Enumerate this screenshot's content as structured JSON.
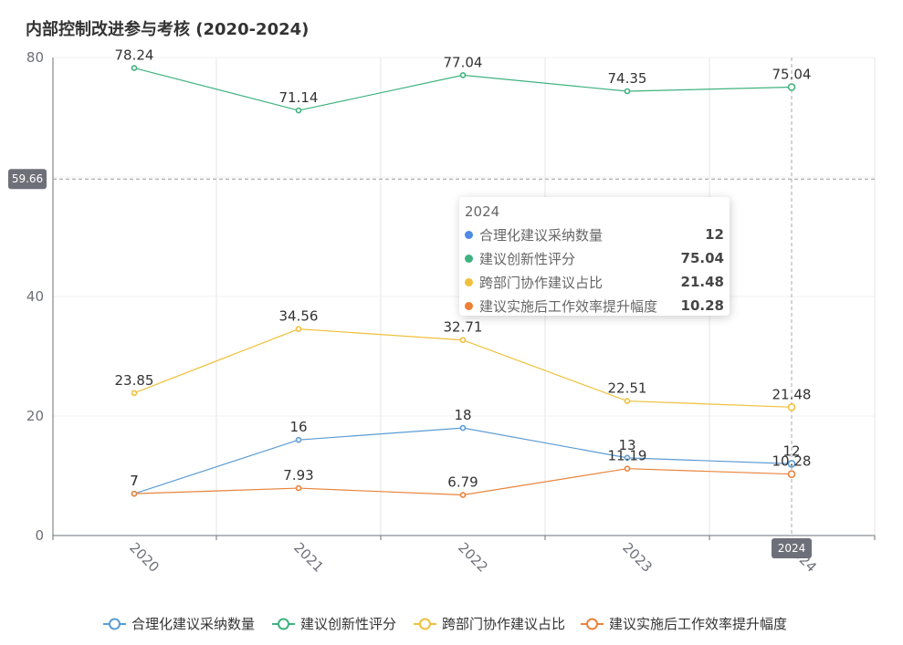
{
  "chart_data": {
    "type": "line",
    "title": "内部控制改进参与考核 (2020-2024)",
    "categories": [
      "2020",
      "2021",
      "2022",
      "2023",
      "2024"
    ],
    "ylim": [
      0,
      80
    ],
    "yticks": [
      0,
      20,
      40,
      60,
      80
    ],
    "grid": true,
    "legend_position": "bottom",
    "series": [
      {
        "name": "合理化建议采纳数量",
        "color": "#5b9bd5",
        "values": [
          7,
          16,
          18,
          13,
          12
        ]
      },
      {
        "name": "建议创新性评分",
        "color": "#3fb27f",
        "values": [
          78.24,
          71.14,
          77.04,
          74.35,
          75.04
        ]
      },
      {
        "name": "跨部门协作建议占比",
        "color": "#f0c03c",
        "values": [
          23.85,
          34.56,
          32.71,
          22.51,
          21.48
        ]
      },
      {
        "name": "建议实施后工作效率提升幅度",
        "color": "#e8843c",
        "values": [
          7,
          7.93,
          6.79,
          11.19,
          10.28
        ]
      }
    ],
    "axis_pointer": {
      "y_value": "59.66",
      "x_label": "2024"
    }
  },
  "tooltip": {
    "title": "2024",
    "rows": [
      {
        "name": "合理化建议采纳数量",
        "value": "12",
        "color": "#4e8ae6"
      },
      {
        "name": "建议创新性评分",
        "value": "75.04",
        "color": "#3fb27f"
      },
      {
        "name": "跨部门协作建议占比",
        "value": "21.48",
        "color": "#f0c03c"
      },
      {
        "name": "建议实施后工作效率提升幅度",
        "value": "10.28",
        "color": "#ef7d32"
      }
    ]
  }
}
